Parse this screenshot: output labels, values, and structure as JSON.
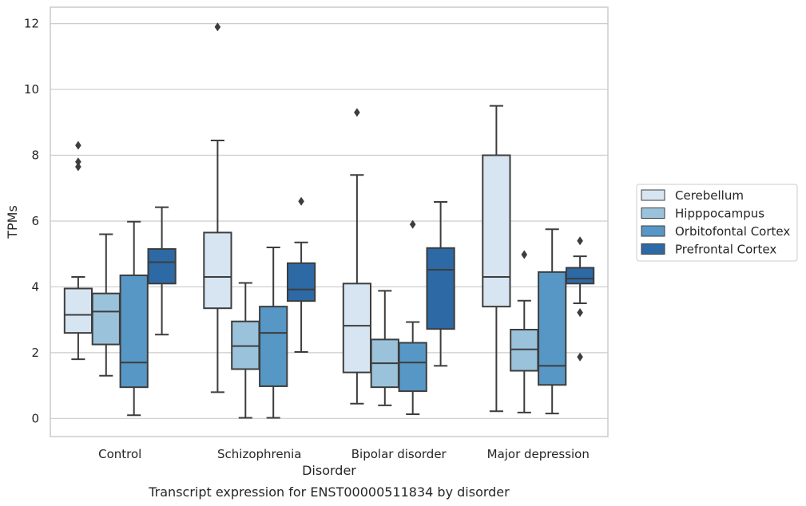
{
  "chart_data": {
    "type": "box",
    "caption": "Transcript expression for ENST00000511834 by disorder",
    "xlabel": "Disorder",
    "ylabel": "TPMs",
    "ylim": [
      -0.55,
      12.5
    ],
    "yticks": [
      0,
      2,
      4,
      6,
      8,
      10,
      12
    ],
    "grid": "horizontal",
    "legend_position": "right-outside",
    "categories": [
      "Control",
      "Schizophrenia",
      "Bipolar disorder",
      "Major depression"
    ],
    "series": [
      {
        "name": "Cerebellum",
        "color": "#d7e5f2",
        "boxes": [
          {
            "whislo": 1.8,
            "q1": 2.6,
            "med": 3.15,
            "q3": 3.95,
            "whishi": 4.3,
            "fliers": [
              8.3,
              7.8,
              7.65
            ]
          },
          {
            "whislo": 0.8,
            "q1": 3.35,
            "med": 4.3,
            "q3": 5.65,
            "whishi": 8.45,
            "fliers": [
              11.9
            ]
          },
          {
            "whislo": 0.45,
            "q1": 1.4,
            "med": 2.82,
            "q3": 4.1,
            "whishi": 7.4,
            "fliers": [
              9.3
            ]
          },
          {
            "whislo": 0.22,
            "q1": 3.4,
            "med": 4.3,
            "q3": 8.0,
            "whishi": 9.5,
            "fliers": []
          }
        ]
      },
      {
        "name": "Hipppocampus",
        "color": "#9ac3db",
        "boxes": [
          {
            "whislo": 1.3,
            "q1": 2.25,
            "med": 3.25,
            "q3": 3.8,
            "whishi": 5.6,
            "fliers": []
          },
          {
            "whislo": 0.02,
            "q1": 1.5,
            "med": 2.2,
            "q3": 2.95,
            "whishi": 4.12,
            "fliers": []
          },
          {
            "whislo": 0.4,
            "q1": 0.95,
            "med": 1.68,
            "q3": 2.4,
            "whishi": 3.88,
            "fliers": []
          },
          {
            "whislo": 0.18,
            "q1": 1.45,
            "med": 2.1,
            "q3": 2.7,
            "whishi": 3.58,
            "fliers": [
              4.98
            ]
          }
        ]
      },
      {
        "name": "Orbitofontal Cortex",
        "color": "#5797c5",
        "boxes": [
          {
            "whislo": 0.1,
            "q1": 0.95,
            "med": 1.7,
            "q3": 4.35,
            "whishi": 5.98,
            "fliers": []
          },
          {
            "whislo": 0.02,
            "q1": 0.98,
            "med": 2.6,
            "q3": 3.4,
            "whishi": 5.2,
            "fliers": []
          },
          {
            "whislo": 0.13,
            "q1": 0.83,
            "med": 1.7,
            "q3": 2.3,
            "whishi": 2.93,
            "fliers": [
              5.9
            ]
          },
          {
            "whislo": 0.15,
            "q1": 1.02,
            "med": 1.6,
            "q3": 4.45,
            "whishi": 5.75,
            "fliers": []
          }
        ]
      },
      {
        "name": "Prefrontal Cortex",
        "color": "#2d69a5",
        "boxes": [
          {
            "whislo": 2.55,
            "q1": 4.1,
            "med": 4.75,
            "q3": 5.15,
            "whishi": 6.42,
            "fliers": []
          },
          {
            "whislo": 2.02,
            "q1": 3.57,
            "med": 3.92,
            "q3": 4.72,
            "whishi": 5.35,
            "fliers": [
              6.6
            ]
          },
          {
            "whislo": 1.6,
            "q1": 2.72,
            "med": 4.52,
            "q3": 5.18,
            "whishi": 6.58,
            "fliers": []
          },
          {
            "whislo": 3.5,
            "q1": 4.1,
            "med": 4.25,
            "q3": 4.58,
            "whishi": 4.93,
            "fliers": [
              5.4,
              3.22,
              1.87
            ]
          }
        ]
      }
    ]
  }
}
